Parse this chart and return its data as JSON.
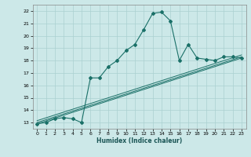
{
  "xlabel": "Humidex (Indice chaleur)",
  "ylabel": "",
  "xlim": [
    -0.5,
    23.5
  ],
  "ylim": [
    12.5,
    22.5
  ],
  "xticks": [
    0,
    1,
    2,
    3,
    4,
    5,
    6,
    7,
    8,
    9,
    10,
    11,
    12,
    13,
    14,
    15,
    16,
    17,
    18,
    19,
    20,
    21,
    22,
    23
  ],
  "yticks": [
    13,
    14,
    15,
    16,
    17,
    18,
    19,
    20,
    21,
    22
  ],
  "background_color": "#cce8e8",
  "grid_color": "#aad0d0",
  "line_color": "#1a7068",
  "line1_x": [
    0,
    1,
    2,
    3,
    4,
    5,
    6,
    7,
    8,
    9,
    10,
    11,
    12,
    13,
    14,
    15,
    16,
    17,
    18,
    19,
    20,
    21,
    22,
    23
  ],
  "line1_y": [
    12.9,
    13.0,
    13.3,
    13.4,
    13.3,
    13.0,
    16.6,
    16.6,
    17.5,
    18.0,
    18.8,
    19.3,
    20.5,
    21.8,
    21.9,
    21.2,
    18.0,
    19.3,
    18.2,
    18.1,
    18.0,
    18.3,
    18.3,
    18.2
  ],
  "line2_x": [
    0,
    23
  ],
  "line2_y": [
    12.9,
    18.2
  ],
  "line3_x": [
    0,
    23
  ],
  "line3_y": [
    13.0,
    18.3
  ],
  "line4_x": [
    0,
    23
  ],
  "line4_y": [
    13.15,
    18.45
  ]
}
